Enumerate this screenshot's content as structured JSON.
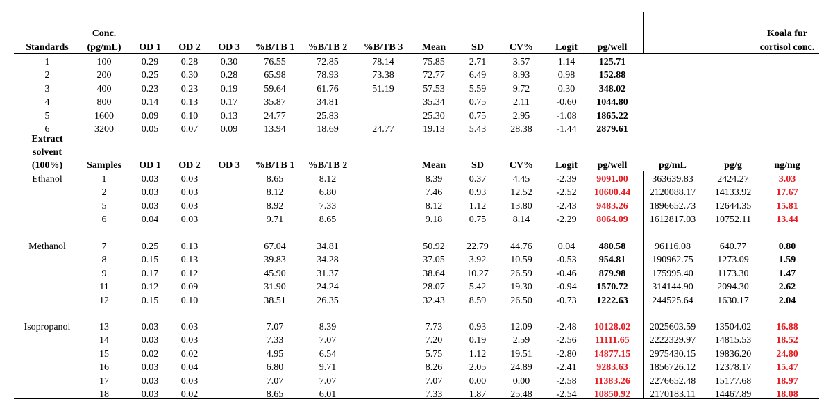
{
  "columns": [
    "Standards",
    "Conc. (pg/mL)",
    "OD 1",
    "OD 2",
    "OD 3",
    "%B/TB 1",
    "%B/TB 2",
    "%B/TB 3",
    "Mean",
    "SD",
    "CV%",
    "Logit",
    "pg/well",
    "pg/mL",
    "pg/g",
    "ng/mg"
  ],
  "header1": {
    "standards": "Standards",
    "conc_a": "Conc.",
    "conc_b": "(pg/mL)",
    "od1": "OD 1",
    "od2": "OD 2",
    "od3": "OD 3",
    "bt1": "%B/TB 1",
    "bt2": "%B/TB 2",
    "bt3": "%B/TB 3",
    "mean": "Mean",
    "sd": "SD",
    "cv": "CV%",
    "logit": "Logit",
    "pgwell": "pg/well",
    "koala_a": "Koala fur",
    "koala_b": "cortisol conc."
  },
  "standards": [
    [
      "1",
      "100",
      "0.29",
      "0.28",
      "0.30",
      "76.55",
      "72.85",
      "78.14",
      "75.85",
      "2.71",
      "3.57",
      "1.14",
      "125.71"
    ],
    [
      "2",
      "200",
      "0.25",
      "0.30",
      "0.28",
      "65.98",
      "78.93",
      "73.38",
      "72.77",
      "6.49",
      "8.93",
      "0.98",
      "152.88"
    ],
    [
      "3",
      "400",
      "0.23",
      "0.23",
      "0.19",
      "59.64",
      "61.76",
      "51.19",
      "57.53",
      "5.59",
      "9.72",
      "0.30",
      "348.02"
    ],
    [
      "4",
      "800",
      "0.14",
      "0.13",
      "0.17",
      "35.87",
      "34.81",
      "",
      "35.34",
      "0.75",
      "2.11",
      "-0.60",
      "1044.80"
    ],
    [
      "5",
      "1600",
      "0.09",
      "0.10",
      "0.13",
      "24.77",
      "25.83",
      "",
      "25.30",
      "0.75",
      "2.95",
      "-1.08",
      "1865.22"
    ],
    [
      "6",
      "3200",
      "0.05",
      "0.07",
      "0.09",
      "13.94",
      "18.69",
      "24.77",
      "19.13",
      "5.43",
      "28.38",
      "-1.44",
      "2879.61"
    ]
  ],
  "header2": {
    "solvent_a": "Extract",
    "solvent_b": "solvent",
    "solvent_c": "(100%)",
    "samples": "Samples",
    "od1": "OD 1",
    "od2": "OD 2",
    "od3": "OD 3",
    "bt1": "%B/TB 1",
    "bt2": "%B/TB 2",
    "mean": "Mean",
    "sd": "SD",
    "cv": "CV%",
    "logit": "Logit",
    "pgwell": "pg/well",
    "pgml": "pg/mL",
    "pgg": "pg/g",
    "ngmg": "ng/mg"
  },
  "groups": [
    {
      "solvent": "Ethanol",
      "highlight": true,
      "rows": [
        [
          "1",
          "0.03",
          "0.03",
          "8.65",
          "8.12",
          "8.39",
          "0.37",
          "4.45",
          "-2.39",
          "9091.00",
          "363639.83",
          "2424.27",
          "3.03"
        ],
        [
          "2",
          "0.03",
          "0.03",
          "8.12",
          "6.80",
          "7.46",
          "0.93",
          "12.52",
          "-2.52",
          "10600.44",
          "2120088.17",
          "14133.92",
          "17.67"
        ],
        [
          "5",
          "0.03",
          "0.03",
          "8.92",
          "7.33",
          "8.12",
          "1.12",
          "13.80",
          "-2.43",
          "9483.26",
          "1896652.73",
          "12644.35",
          "15.81"
        ],
        [
          "6",
          "0.04",
          "0.03",
          "9.71",
          "8.65",
          "9.18",
          "0.75",
          "8.14",
          "-2.29",
          "8064.09",
          "1612817.03",
          "10752.11",
          "13.44"
        ]
      ]
    },
    {
      "solvent": "Methanol",
      "highlight": false,
      "rows": [
        [
          "7",
          "0.25",
          "0.13",
          "67.04",
          "34.81",
          "50.92",
          "22.79",
          "44.76",
          "0.04",
          "480.58",
          "96116.08",
          "640.77",
          "0.80"
        ],
        [
          "8",
          "0.15",
          "0.13",
          "39.83",
          "34.28",
          "37.05",
          "3.92",
          "10.59",
          "-0.53",
          "954.81",
          "190962.75",
          "1273.09",
          "1.59"
        ],
        [
          "9",
          "0.17",
          "0.12",
          "45.90",
          "31.37",
          "38.64",
          "10.27",
          "26.59",
          "-0.46",
          "879.98",
          "175995.40",
          "1173.30",
          "1.47"
        ],
        [
          "11",
          "0.12",
          "0.09",
          "31.90",
          "24.24",
          "28.07",
          "5.42",
          "19.30",
          "-0.94",
          "1570.72",
          "314144.90",
          "2094.30",
          "2.62"
        ],
        [
          "12",
          "0.15",
          "0.10",
          "38.51",
          "26.35",
          "32.43",
          "8.59",
          "26.50",
          "-0.73",
          "1222.63",
          "244525.64",
          "1630.17",
          "2.04"
        ]
      ]
    },
    {
      "solvent": "Isopropanol",
      "highlight": true,
      "rows": [
        [
          "13",
          "0.03",
          "0.03",
          "7.07",
          "8.39",
          "7.73",
          "0.93",
          "12.09",
          "-2.48",
          "10128.02",
          "2025603.59",
          "13504.02",
          "16.88"
        ],
        [
          "14",
          "0.03",
          "0.03",
          "7.33",
          "7.07",
          "7.20",
          "0.19",
          "2.59",
          "-2.56",
          "11111.65",
          "2222329.97",
          "14815.53",
          "18.52"
        ],
        [
          "15",
          "0.02",
          "0.02",
          "4.95",
          "6.54",
          "5.75",
          "1.12",
          "19.51",
          "-2.80",
          "14877.15",
          "2975430.15",
          "19836.20",
          "24.80"
        ],
        [
          "16",
          "0.03",
          "0.04",
          "6.80",
          "9.71",
          "8.26",
          "2.05",
          "24.89",
          "-2.41",
          "9283.63",
          "1856726.12",
          "12378.17",
          "15.47"
        ],
        [
          "17",
          "0.03",
          "0.03",
          "7.07",
          "7.07",
          "7.07",
          "0.00",
          "0.00",
          "-2.58",
          "11383.26",
          "2276652.48",
          "15177.68",
          "18.97"
        ],
        [
          "18",
          "0.03",
          "0.02",
          "8.65",
          "6.01",
          "7.33",
          "1.87",
          "25.48",
          "-2.54",
          "10850.92",
          "2170183.11",
          "14467.89",
          "18.08"
        ]
      ]
    }
  ],
  "colors": {
    "highlight": "#e8191f",
    "text": "#000000",
    "rule": "#000000"
  }
}
